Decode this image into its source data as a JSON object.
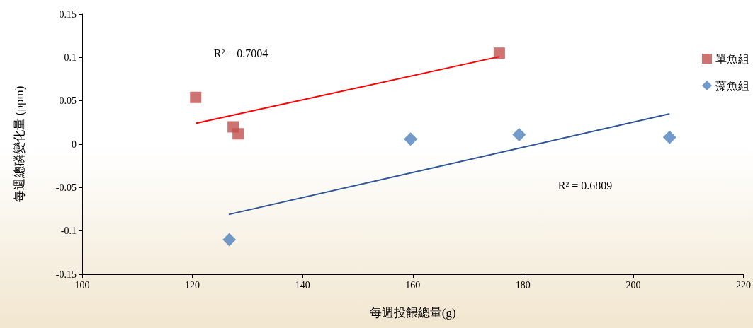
{
  "chart_data": {
    "type": "scatter",
    "xlabel": "每週投餵總量(g)",
    "ylabel": "每週總磷變化量 (ppm)",
    "xlim": [
      100,
      220
    ],
    "xticks": [
      100,
      120,
      140,
      160,
      180,
      200,
      220
    ],
    "ylim": [
      -0.15,
      0.15
    ],
    "yticks": [
      -0.15,
      -0.1,
      -0.05,
      0,
      0.05,
      0.1,
      0.15
    ],
    "grid": false,
    "legend": "right",
    "series": [
      {
        "name": "單魚組",
        "marker": "square",
        "color": "#c0504d",
        "x": [
          120.6,
          127.4,
          128.3,
          175.7
        ],
        "values": [
          0.054,
          0.02,
          0.012,
          0.105
        ]
      },
      {
        "name": "藻魚組",
        "marker": "diamond",
        "color": "#4f81bd",
        "x": [
          126.7,
          159.6,
          179.3,
          206.6
        ],
        "values": [
          -0.11,
          0.006,
          0.011,
          0.008
        ]
      },
      {
        "type": "line",
        "color": "#ff0000",
        "x": [
          120.6,
          175.7
        ],
        "values": [
          0.024,
          0.101
        ]
      },
      {
        "type": "line",
        "color": "#2e5597",
        "x": [
          126.6,
          206.6
        ],
        "values": [
          -0.081,
          0.035
        ]
      }
    ],
    "annotations": [
      "R² = 0.7004",
      "R² = 0.6809"
    ]
  }
}
